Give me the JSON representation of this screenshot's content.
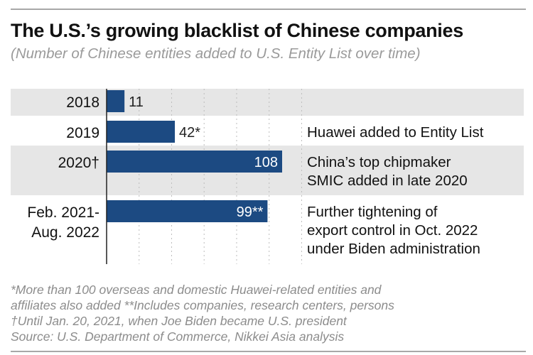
{
  "title": "The U.S.’s growing blacklist of Chinese companies",
  "subtitle": "(Number of Chinese entities added to U.S. Entity List over time)",
  "chart_data": {
    "type": "bar",
    "orientation": "horizontal",
    "categories": [
      [
        "2018"
      ],
      [
        "2019"
      ],
      [
        "2020†"
      ],
      [
        "Feb. 2021-",
        "Aug. 2022"
      ]
    ],
    "values": [
      11,
      42,
      108,
      99
    ],
    "data_labels": [
      "11",
      "42*",
      "108",
      "99**"
    ],
    "annotations": [
      [],
      [
        "Huawei added to Entity List"
      ],
      [
        "China’s top chipmaker",
        "SMIC added in late 2020"
      ],
      [
        "Further tightening of",
        "export control in Oct. 2022",
        "under Biden administration"
      ]
    ],
    "xlim": [
      0,
      120
    ],
    "grid": true,
    "grid_step": 20,
    "bar_color": "#1c4a82",
    "band_color": "#e6e6e6"
  },
  "footnotes": [
    "*More than 100 overseas and domestic Huawei-related entities and",
    "affiliates also added  **Includes companies, research centers, persons",
    "†Until Jan. 20, 2021, when Joe Biden became U.S. president",
    "Source: U.S. Department of Commerce, Nikkei Asia analysis"
  ]
}
